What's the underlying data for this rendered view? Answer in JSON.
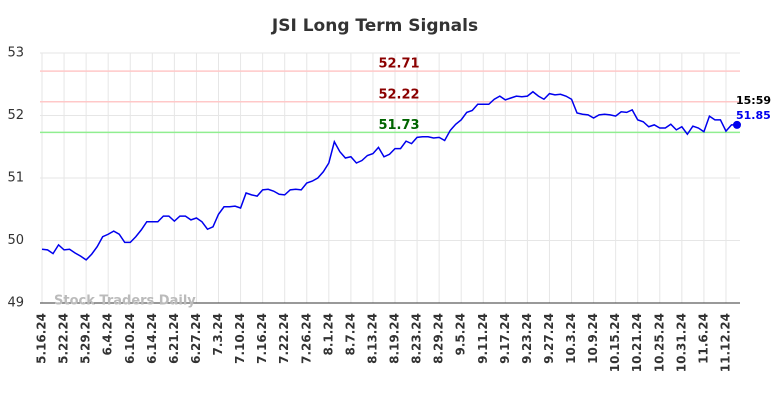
{
  "chart_data": {
    "type": "line",
    "title": "JSI Long Term Signals",
    "watermark": "Stock Traders Daily",
    "categories": [
      "5.16.24",
      null,
      null,
      null,
      "5.22.24",
      null,
      null,
      null,
      "5.29.24",
      null,
      null,
      null,
      "6.4.24",
      null,
      null,
      null,
      "6.10.24",
      null,
      null,
      null,
      "6.14.24",
      null,
      null,
      null,
      "6.21.24",
      null,
      null,
      null,
      "6.27.24",
      null,
      null,
      null,
      "7.3.24",
      null,
      null,
      null,
      "7.10.24",
      null,
      null,
      null,
      "7.16.24",
      null,
      null,
      null,
      "7.22.24",
      null,
      null,
      null,
      "7.26.24",
      null,
      null,
      null,
      "8.1.24",
      null,
      null,
      null,
      "8.7.24",
      null,
      null,
      null,
      "8.13.24",
      null,
      null,
      null,
      "8.19.24",
      null,
      null,
      null,
      "8.23.24",
      null,
      null,
      null,
      "8.29.24",
      null,
      null,
      null,
      "9.5.24",
      null,
      null,
      null,
      "9.11.24",
      null,
      null,
      null,
      "9.17.24",
      null,
      null,
      null,
      "9.23.24",
      null,
      null,
      null,
      "9.27.24",
      null,
      null,
      null,
      "10.3.24",
      null,
      null,
      null,
      "10.9.24",
      null,
      null,
      null,
      "10.15.24",
      null,
      null,
      null,
      "10.21.24",
      null,
      null,
      null,
      "10.25.24",
      null,
      null,
      null,
      "10.31.24",
      null,
      null,
      null,
      "11.6.24",
      null,
      null,
      null,
      "11.12.24",
      null,
      null
    ],
    "series": [
      {
        "name": "JSI",
        "color": "#0000ee",
        "values": [
          49.86,
          49.85,
          49.79,
          49.93,
          49.85,
          49.86,
          49.8,
          49.75,
          49.69,
          49.78,
          49.9,
          50.06,
          50.1,
          50.15,
          50.1,
          49.97,
          49.97,
          50.06,
          50.17,
          50.3,
          50.3,
          50.3,
          50.39,
          50.39,
          50.31,
          50.39,
          50.39,
          50.33,
          50.36,
          50.3,
          50.18,
          50.22,
          50.42,
          50.54,
          50.54,
          50.55,
          50.52,
          50.76,
          50.73,
          50.71,
          50.81,
          50.82,
          50.79,
          50.74,
          50.73,
          50.81,
          50.82,
          50.81,
          50.92,
          50.95,
          51.0,
          51.1,
          51.24,
          51.58,
          51.42,
          51.32,
          51.34,
          51.24,
          51.28,
          51.36,
          51.39,
          51.49,
          51.34,
          51.38,
          51.47,
          51.47,
          51.59,
          51.55,
          51.65,
          51.66,
          51.66,
          51.64,
          51.65,
          51.6,
          51.76,
          51.86,
          51.93,
          52.05,
          52.08,
          52.18,
          52.18,
          52.18,
          52.26,
          52.31,
          52.25,
          52.28,
          52.31,
          52.3,
          52.31,
          52.38,
          52.31,
          52.26,
          52.35,
          52.33,
          52.34,
          52.31,
          52.26,
          52.04,
          52.02,
          52.01,
          51.96,
          52.01,
          52.02,
          52.01,
          51.99,
          52.06,
          52.05,
          52.09,
          51.93,
          51.9,
          51.82,
          51.85,
          51.8,
          51.8,
          51.86,
          51.77,
          51.82,
          51.7,
          51.83,
          51.8,
          51.74,
          51.99,
          51.93,
          51.93,
          51.75,
          51.85,
          51.85
        ]
      }
    ],
    "last_time": "15:59",
    "hlines": [
      {
        "value": 52.71,
        "color": "#ffc8c8",
        "label_color": "#8b0000"
      },
      {
        "value": 52.22,
        "color": "#ffc8c8",
        "label_color": "#8b0000"
      },
      {
        "value": 51.73,
        "color": "#90ee90",
        "label_color": "#006400"
      }
    ],
    "ylim": [
      49,
      53
    ],
    "yticks": [
      49,
      50,
      51,
      52,
      53
    ],
    "grid": true
  }
}
